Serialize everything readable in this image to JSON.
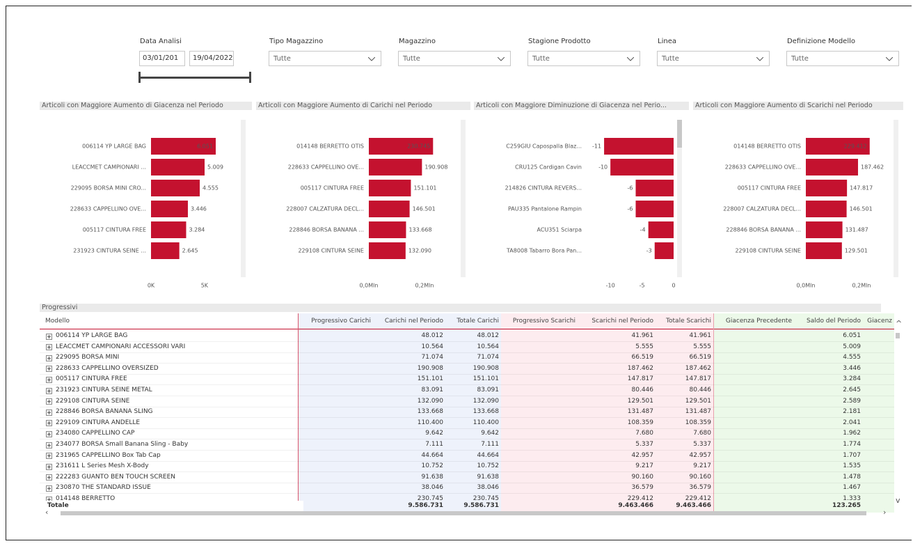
{
  "filters": {
    "date": {
      "label": "Data Analisi",
      "from": "03/01/201",
      "to": "19/04/2022"
    },
    "dropdowns": [
      {
        "label": "Tipo Magazzino",
        "value": "Tutte"
      },
      {
        "label": "Magazzino",
        "value": "Tutte"
      },
      {
        "label": "Stagione Prodotto",
        "value": "Tutte"
      },
      {
        "label": "Linea",
        "value": "Tutte"
      },
      {
        "label": "Definizione Modello",
        "value": "Tutte"
      }
    ]
  },
  "charts": [
    {
      "type": "bar",
      "title": "Articoli con Maggiore Aumento di Giacenza nel Periodo",
      "categories": [
        "006114 YP LARGE BAG",
        "LEACCMET CAMPIONARI ...",
        "229095 BORSA MINI CRO...",
        "228633 CAPPELLINO OVE...",
        "005117 CINTURA FREE",
        "231923 CINTURA SEINE ..."
      ],
      "values": [
        6051,
        5009,
        4555,
        3446,
        3284,
        2645
      ],
      "value_labels": [
        "6.051",
        "5.009",
        "4.555",
        "3.446",
        "3.284",
        "2.645"
      ],
      "color": "#c4122f",
      "xlim": [
        0,
        8000
      ],
      "xticks": [
        {
          "value": 0,
          "label": "0K"
        },
        {
          "value": 5000,
          "label": "5K"
        }
      ]
    },
    {
      "type": "bar",
      "title": "Articoli con Maggiore Aumento di Carichi nel Periodo",
      "categories": [
        "014148 BERRETTO OTIS",
        "228633 CAPPELLINO OVE...",
        "005117 CINTURA FREE",
        "228007 CALZATURA DECL...",
        "228846 BORSA BANANA ...",
        "229108 CINTURA SEINE"
      ],
      "values": [
        230745,
        190908,
        151101,
        146501,
        133668,
        132090
      ],
      "value_labels": [
        "230.745",
        "190.908",
        "151.101",
        "146.501",
        "133.668",
        "132.090"
      ],
      "color": "#c4122f",
      "xlim": [
        0,
        300000
      ],
      "xticks": [
        {
          "value": 0,
          "label": "0,0Mln"
        },
        {
          "value": 200000,
          "label": "0,2Mln"
        }
      ]
    },
    {
      "type": "bar",
      "title": "Articoli con Maggiore Diminuzione di Giacenza nel Perio...",
      "categories": [
        "C259GIU Capospalla Blaz...",
        "CRU125 Cardigan Cavin",
        "214826 CINTURA REVERS...",
        "PAU335 Pantalone Rampin",
        "ACU351 Sciarpa",
        "TA8008 Tabarro Bora Pan..."
      ],
      "values": [
        -11,
        -10,
        -6,
        -6,
        -4,
        -3
      ],
      "color": "#c4122f",
      "xlim": [
        -12,
        0
      ],
      "xticks": [
        -10,
        -5,
        0
      ]
    },
    {
      "type": "bar",
      "title": "Articoli con Maggiore Aumento di Scarichi nel Periodo",
      "categories": [
        "014148 BERRETTO OTIS",
        "228633 CAPPELLINO OVE...",
        "005117 CINTURA FREE",
        "228007 CALZATURA DECL...",
        "228846 BORSA BANANA ...",
        "229108 CINTURA SEINE"
      ],
      "values": [
        229412,
        187462,
        147817,
        146501,
        131487,
        129501
      ],
      "value_labels": [
        "229.412",
        "187.462",
        "147.817",
        "146.501",
        "131.487",
        "129.501"
      ],
      "color": "#c4122f",
      "xlim": [
        0,
        300000
      ],
      "xticks": [
        {
          "value": 0,
          "label": "0,0Mln"
        },
        {
          "value": 200000,
          "label": "0,2Mln"
        }
      ]
    }
  ],
  "table": {
    "title": "Progressivi",
    "columns": [
      "Modello",
      "Progressivo Carichi",
      "Carichi nel Periodo",
      "Totale Carichi",
      "Progressivo Scarichi",
      "Scarichi nel Periodo",
      "Totale Scarichi",
      "Giacenza Precedente",
      "Saldo del Periodo",
      "Giacenz"
    ],
    "rows": [
      {
        "model": "006114 YP LARGE BAG",
        "carichi": "48.012",
        "totale_carichi": "48.012",
        "scarichi": "41.961",
        "totale_scarichi": "41.961",
        "saldo": "6.051"
      },
      {
        "model": "LEACCMET CAMPIONARI ACCESSORI VARI",
        "carichi": "10.564",
        "totale_carichi": "10.564",
        "scarichi": "5.555",
        "totale_scarichi": "5.555",
        "saldo": "5.009"
      },
      {
        "model": "229095 BORSA MINI",
        "carichi": "71.074",
        "totale_carichi": "71.074",
        "scarichi": "66.519",
        "totale_scarichi": "66.519",
        "saldo": "4.555"
      },
      {
        "model": "228633 CAPPELLINO OVERSIZED",
        "carichi": "190.908",
        "totale_carichi": "190.908",
        "scarichi": "187.462",
        "totale_scarichi": "187.462",
        "saldo": "3.446"
      },
      {
        "model": "005117 CINTURA FREE",
        "carichi": "151.101",
        "totale_carichi": "151.101",
        "scarichi": "147.817",
        "totale_scarichi": "147.817",
        "saldo": "3.284"
      },
      {
        "model": "231923 CINTURA SEINE METAL",
        "carichi": "83.091",
        "totale_carichi": "83.091",
        "scarichi": "80.446",
        "totale_scarichi": "80.446",
        "saldo": "2.645"
      },
      {
        "model": "229108 CINTURA SEINE",
        "carichi": "132.090",
        "totale_carichi": "132.090",
        "scarichi": "129.501",
        "totale_scarichi": "129.501",
        "saldo": "2.589"
      },
      {
        "model": "228846 BORSA BANANA SLING",
        "carichi": "133.668",
        "totale_carichi": "133.668",
        "scarichi": "131.487",
        "totale_scarichi": "131.487",
        "saldo": "2.181"
      },
      {
        "model": "229109 CINTURA ANDELLE",
        "carichi": "110.400",
        "totale_carichi": "110.400",
        "scarichi": "108.359",
        "totale_scarichi": "108.359",
        "saldo": "2.041"
      },
      {
        "model": "234080 CAPPELLINO CAP",
        "carichi": "9.642",
        "totale_carichi": "9.642",
        "scarichi": "7.680",
        "totale_scarichi": "7.680",
        "saldo": "1.962"
      },
      {
        "model": "234077 BORSA Small Banana Sling - Baby",
        "carichi": "7.111",
        "totale_carichi": "7.111",
        "scarichi": "5.337",
        "totale_scarichi": "5.337",
        "saldo": "1.774"
      },
      {
        "model": "231965 CAPPELLINO Box Tab Cap",
        "carichi": "44.664",
        "totale_carichi": "44.664",
        "scarichi": "42.957",
        "totale_scarichi": "42.957",
        "saldo": "1.707"
      },
      {
        "model": "231611 L Series Mesh X-Body",
        "carichi": "10.752",
        "totale_carichi": "10.752",
        "scarichi": "9.217",
        "totale_scarichi": "9.217",
        "saldo": "1.535"
      },
      {
        "model": "222283 GUANTO BEN TOUCH SCREEN",
        "carichi": "91.638",
        "totale_carichi": "91.638",
        "scarichi": "90.160",
        "totale_scarichi": "90.160",
        "saldo": "1.478"
      },
      {
        "model": "230870 THE STANDARD ISSUE",
        "carichi": "38.046",
        "totale_carichi": "38.046",
        "scarichi": "36.579",
        "totale_scarichi": "36.579",
        "saldo": "1.467"
      },
      {
        "model": "014148 BERRETTO",
        "carichi": "230.745",
        "totale_carichi": "230.745",
        "scarichi": "229.412",
        "totale_scarichi": "229.412",
        "saldo": "1.333"
      }
    ],
    "total": {
      "model": "Totale",
      "carichi": "9.586.731",
      "totale_carichi": "9.586.731",
      "scarichi": "9.463.466",
      "totale_scarichi": "9.463.466",
      "saldo": "123.265"
    }
  }
}
